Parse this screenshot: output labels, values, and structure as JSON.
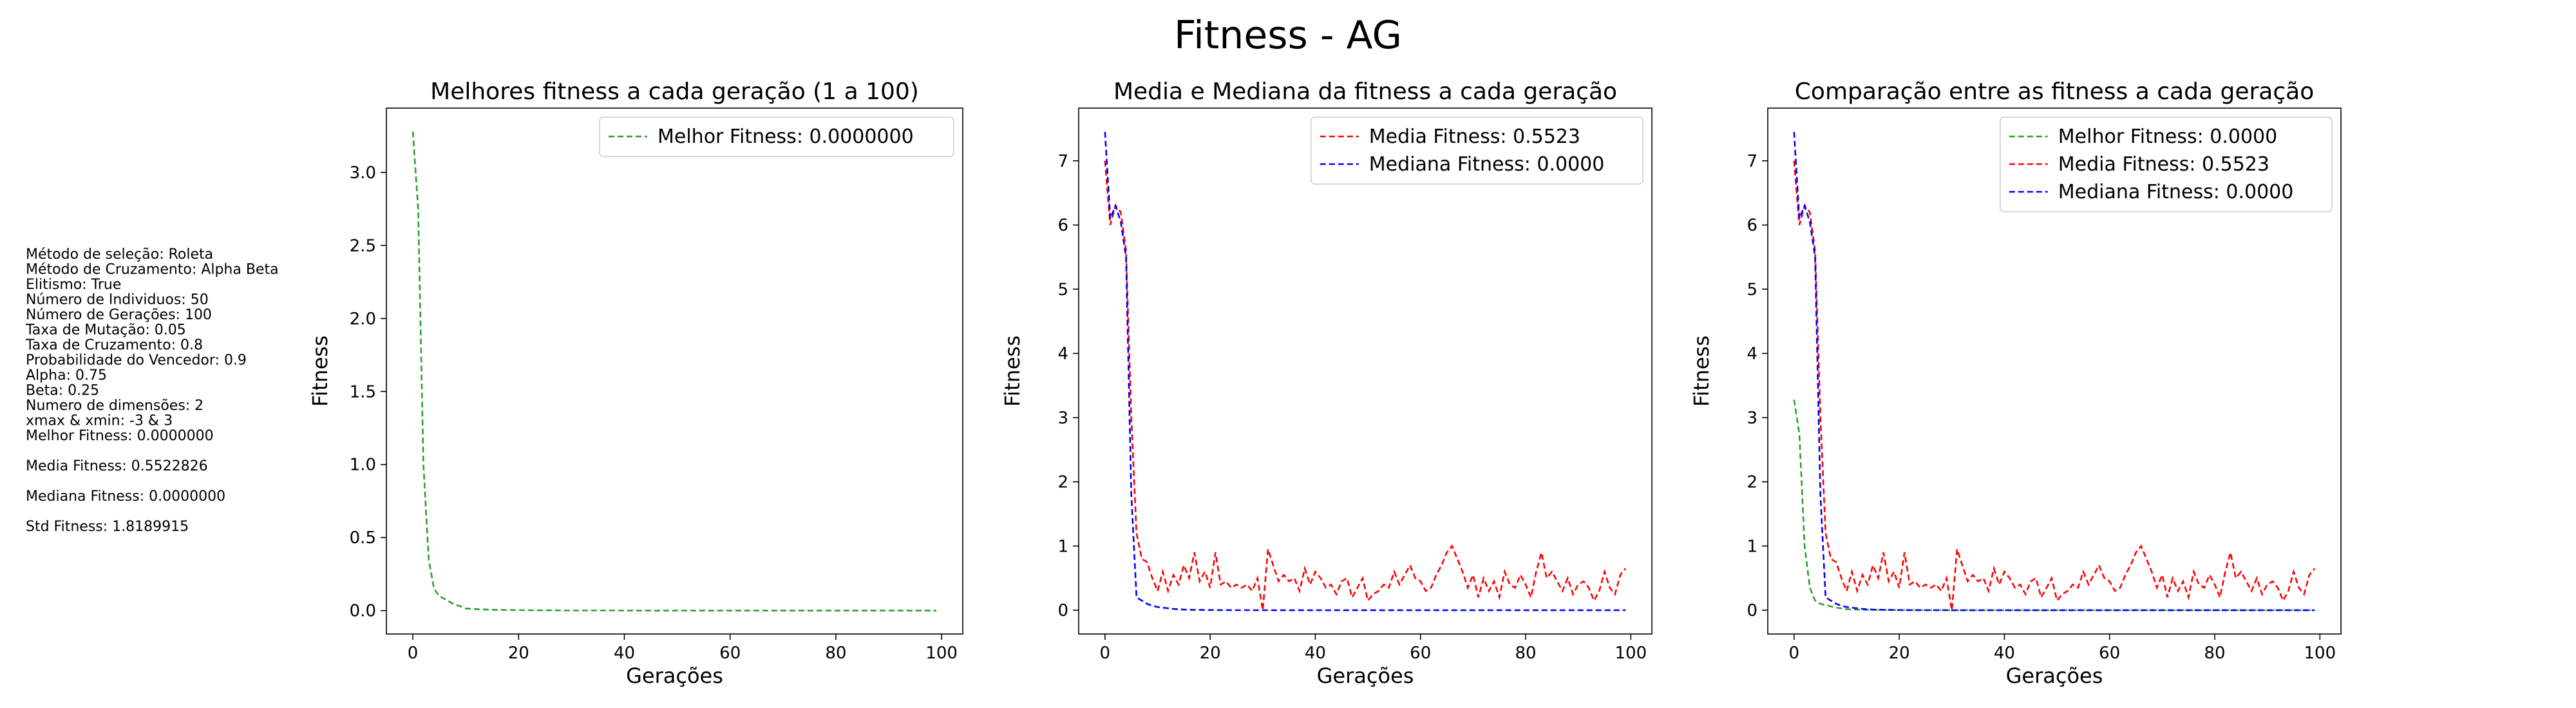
{
  "figure": {
    "suptitle": "Fitness - AG"
  },
  "info_lines": [
    "Método de seleção: Roleta",
    "Método de Cruzamento: Alpha Beta",
    "Elitismo: True",
    "Número de Individuos: 50",
    "Número de Gerações: 100",
    "Taxa de Mutação: 0.05",
    "Taxa de Cruzamento: 0.8",
    "Probabilidade do Vencedor: 0.9",
    "Alpha: 0.75",
    "Beta: 0.25",
    "Numero de dimensões: 2",
    "xmax & xmin: -3 & 3",
    "Melhor Fitness: 0.0000000",
    "",
    "Media Fitness: 0.5522826",
    "",
    "Mediana Fitness: 0.0000000",
    "",
    "Std Fitness: 1.8189915"
  ],
  "colors": {
    "best": "#2ca02c",
    "mean": "#ff0000",
    "median": "#0000ff"
  },
  "series_values": {
    "best": [
      3.28,
      2.75,
      1.0,
      0.35,
      0.15,
      0.1,
      0.08,
      0.06,
      0.04,
      0.03,
      0.015,
      0.012,
      0.01,
      0.008,
      0.007,
      0.006,
      0.005,
      0.005,
      0.004,
      0.004,
      0.003,
      0.003,
      0.003,
      0.002,
      0.002,
      0.002,
      0.002,
      0.002,
      0.001,
      0.001,
      0.001,
      0.001,
      0.001,
      0.001,
      0.001,
      0.001,
      0.001,
      0.001,
      0.001,
      0.001,
      0,
      0,
      0,
      0,
      0,
      0,
      0,
      0,
      0,
      0,
      0,
      0,
      0,
      0,
      0,
      0,
      0,
      0,
      0,
      0,
      0,
      0,
      0,
      0,
      0,
      0,
      0,
      0,
      0,
      0,
      0,
      0,
      0,
      0,
      0,
      0,
      0,
      0,
      0,
      0,
      0,
      0,
      0,
      0,
      0,
      0,
      0,
      0,
      0,
      0,
      0,
      0,
      0,
      0,
      0,
      0,
      0,
      0,
      0,
      0
    ],
    "mean": [
      7.0,
      6.0,
      6.3,
      6.2,
      5.6,
      3.0,
      1.2,
      0.8,
      0.75,
      0.5,
      0.3,
      0.6,
      0.3,
      0.55,
      0.4,
      0.7,
      0.5,
      0.9,
      0.45,
      0.6,
      0.35,
      0.9,
      0.4,
      0.45,
      0.35,
      0.4,
      0.35,
      0.4,
      0.3,
      0.5,
      0.0,
      0.95,
      0.7,
      0.45,
      0.55,
      0.45,
      0.5,
      0.3,
      0.65,
      0.4,
      0.6,
      0.5,
      0.35,
      0.4,
      0.25,
      0.45,
      0.5,
      0.2,
      0.35,
      0.5,
      0.15,
      0.25,
      0.3,
      0.4,
      0.35,
      0.6,
      0.4,
      0.55,
      0.7,
      0.5,
      0.45,
      0.3,
      0.35,
      0.55,
      0.7,
      0.9,
      1.0,
      0.8,
      0.6,
      0.35,
      0.55,
      0.2,
      0.5,
      0.3,
      0.45,
      0.2,
      0.6,
      0.4,
      0.35,
      0.55,
      0.4,
      0.2,
      0.6,
      0.9,
      0.5,
      0.6,
      0.45,
      0.3,
      0.5,
      0.25,
      0.4,
      0.45,
      0.35,
      0.15,
      0.3,
      0.6,
      0.35,
      0.25,
      0.55,
      0.65
    ],
    "median": [
      7.45,
      6.1,
      6.3,
      6.05,
      5.5,
      1.8,
      0.2,
      0.15,
      0.1,
      0.07,
      0.05,
      0.04,
      0.03,
      0.02,
      0.015,
      0.01,
      0.008,
      0.006,
      0.005,
      0.004,
      0.003,
      0.003,
      0.002,
      0.002,
      0.002,
      0.001,
      0.001,
      0.001,
      0.001,
      0.001,
      0,
      0,
      0,
      0,
      0,
      0,
      0,
      0,
      0,
      0,
      0,
      0,
      0,
      0,
      0,
      0,
      0,
      0,
      0,
      0,
      0,
      0,
      0,
      0,
      0,
      0,
      0,
      0,
      0,
      0,
      0,
      0,
      0,
      0,
      0,
      0,
      0,
      0,
      0,
      0,
      0,
      0,
      0,
      0,
      0,
      0,
      0,
      0,
      0,
      0,
      0,
      0,
      0,
      0,
      0,
      0,
      0,
      0,
      0,
      0,
      0,
      0,
      0,
      0,
      0,
      0,
      0,
      0,
      0,
      0
    ]
  },
  "chart_data": [
    {
      "type": "line",
      "title": "Melhores fitness a cada geração (1 a 100)",
      "xlabel": "Gerações",
      "ylabel": "Fitness",
      "xlim": [
        -5,
        104
      ],
      "ylim": [
        -0.16,
        3.44
      ],
      "xticks": [
        0,
        20,
        40,
        60,
        80,
        100
      ],
      "yticks": [
        0.0,
        0.5,
        1.0,
        1.5,
        2.0,
        2.5,
        3.0
      ],
      "ytick_labels": [
        "0.0",
        "0.5",
        "1.0",
        "1.5",
        "2.0",
        "2.5",
        "3.0"
      ],
      "legend_position": "top-right",
      "series": [
        {
          "name": "Melhor Fitness: 0.0000000",
          "ref": "best",
          "color_key": "best"
        }
      ]
    },
    {
      "type": "line",
      "title": "Media e Mediana da fitness a cada geração",
      "xlabel": "Gerações",
      "ylabel": "Fitness",
      "xlim": [
        -5,
        104
      ],
      "ylim": [
        -0.37,
        7.82
      ],
      "xticks": [
        0,
        20,
        40,
        60,
        80,
        100
      ],
      "yticks": [
        0,
        1,
        2,
        3,
        4,
        5,
        6,
        7
      ],
      "ytick_labels": [
        "0",
        "1",
        "2",
        "3",
        "4",
        "5",
        "6",
        "7"
      ],
      "legend_position": "top-right",
      "series": [
        {
          "name": "Media Fitness: 0.5523",
          "ref": "mean",
          "color_key": "mean"
        },
        {
          "name": "Mediana Fitness: 0.0000",
          "ref": "median",
          "color_key": "median"
        }
      ]
    },
    {
      "type": "line",
      "title": "Comparação entre as fitness a cada geração",
      "xlabel": "Gerações",
      "ylabel": "Fitness",
      "xlim": [
        -5,
        104
      ],
      "ylim": [
        -0.37,
        7.82
      ],
      "xticks": [
        0,
        20,
        40,
        60,
        80,
        100
      ],
      "yticks": [
        0,
        1,
        2,
        3,
        4,
        5,
        6,
        7
      ],
      "ytick_labels": [
        "0",
        "1",
        "2",
        "3",
        "4",
        "5",
        "6",
        "7"
      ],
      "legend_position": "top-right",
      "series": [
        {
          "name": "Melhor Fitness: 0.0000",
          "ref": "best",
          "color_key": "best"
        },
        {
          "name": "Media Fitness: 0.5523",
          "ref": "mean",
          "color_key": "mean"
        },
        {
          "name": "Mediana Fitness: 0.0000",
          "ref": "median",
          "color_key": "median"
        }
      ]
    }
  ]
}
